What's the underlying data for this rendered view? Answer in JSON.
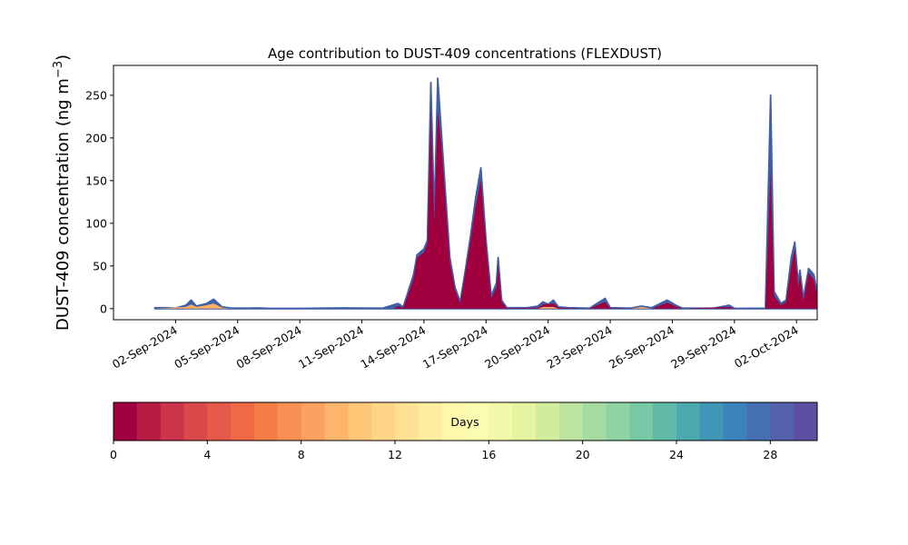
{
  "chart_data": {
    "type": "area",
    "title": "Age contribution to DUST-409 concentrations (FLEXDUST)",
    "ylabel": "DUST-409 concentration (ng m",
    "ylabel_superscript": "−3",
    "ylabel_suffix": ")",
    "x_range": [
      "2024-08-30",
      "2024-10-03"
    ],
    "ylim": [
      -13,
      285
    ],
    "yticks": [
      0,
      50,
      100,
      150,
      200,
      250
    ],
    "xticks": [
      "02-Sep-2024",
      "05-Sep-2024",
      "08-Sep-2024",
      "11-Sep-2024",
      "14-Sep-2024",
      "17-Sep-2024",
      "20-Sep-2024",
      "23-Sep-2024",
      "26-Sep-2024",
      "29-Sep-2024",
      "02-Oct-2024"
    ],
    "xtick_dates": [
      "2024-09-02",
      "2024-09-05",
      "2024-09-08",
      "2024-09-11",
      "2024-09-14",
      "2024-09-17",
      "2024-09-20",
      "2024-09-23",
      "2024-09-26",
      "2024-09-29",
      "2024-10-02"
    ],
    "series": [
      {
        "color": "#3f5fa8",
        "points": [
          [
            "2024-09-01T00:00",
            1
          ],
          [
            "2024-09-01T12:00",
            1
          ],
          [
            "2024-09-02T00:00",
            0.5
          ],
          [
            "2024-09-02T12:00",
            4
          ],
          [
            "2024-09-02T18:00",
            10
          ],
          [
            "2024-09-03T00:00",
            3
          ],
          [
            "2024-09-03T12:00",
            6
          ],
          [
            "2024-09-03T20:00",
            11
          ],
          [
            "2024-09-04T06:00",
            2
          ],
          [
            "2024-09-04T18:00",
            0.5
          ],
          [
            "2024-09-05T12:00",
            0.5
          ],
          [
            "2024-09-06T00:00",
            0.8
          ],
          [
            "2024-09-06T12:00",
            0.3
          ],
          [
            "2024-09-08T00:00",
            0.3
          ],
          [
            "2024-09-10T00:00",
            0.8
          ],
          [
            "2024-09-11T12:00",
            0.5
          ],
          [
            "2024-09-12T00:00",
            0.5
          ],
          [
            "2024-09-12T18:00",
            6
          ],
          [
            "2024-09-13T00:00",
            2
          ],
          [
            "2024-09-13T12:00",
            40
          ],
          [
            "2024-09-13T16:00",
            63
          ],
          [
            "2024-09-14T00:00",
            70
          ],
          [
            "2024-09-14T04:00",
            80
          ],
          [
            "2024-09-14T08:00",
            265
          ],
          [
            "2024-09-14T12:00",
            110
          ],
          [
            "2024-09-14T16:00",
            270
          ],
          [
            "2024-09-14T20:00",
            210
          ],
          [
            "2024-09-15T00:00",
            150
          ],
          [
            "2024-09-15T06:00",
            60
          ],
          [
            "2024-09-15T12:00",
            25
          ],
          [
            "2024-09-15T18:00",
            8
          ],
          [
            "2024-09-16T00:00",
            45
          ],
          [
            "2024-09-16T06:00",
            85
          ],
          [
            "2024-09-16T12:00",
            130
          ],
          [
            "2024-09-16T18:00",
            165
          ],
          [
            "2024-09-17T00:00",
            80
          ],
          [
            "2024-09-17T06:00",
            15
          ],
          [
            "2024-09-17T12:00",
            30
          ],
          [
            "2024-09-17T14:00",
            60
          ],
          [
            "2024-09-17T18:00",
            10
          ],
          [
            "2024-09-18T00:00",
            1
          ],
          [
            "2024-09-19T00:00",
            1
          ],
          [
            "2024-09-19T12:00",
            3
          ],
          [
            "2024-09-19T18:00",
            8
          ],
          [
            "2024-09-20T00:00",
            5
          ],
          [
            "2024-09-20T06:00",
            10
          ],
          [
            "2024-09-20T12:00",
            2
          ],
          [
            "2024-09-21T00:00",
            1
          ],
          [
            "2024-09-22T00:00",
            0.5
          ],
          [
            "2024-09-22T18:00",
            12
          ],
          [
            "2024-09-23T00:00",
            1
          ],
          [
            "2024-09-24T00:00",
            0.5
          ],
          [
            "2024-09-24T12:00",
            3
          ],
          [
            "2024-09-25T00:00",
            1
          ],
          [
            "2024-09-25T18:00",
            10
          ],
          [
            "2024-09-26T06:00",
            3
          ],
          [
            "2024-09-26T12:00",
            0.5
          ],
          [
            "2024-09-28T00:00",
            0.5
          ],
          [
            "2024-09-28T18:00",
            4
          ],
          [
            "2024-09-29T00:00",
            0.3
          ],
          [
            "2024-09-30T12:00",
            0.5
          ],
          [
            "2024-09-30T18:00",
            250
          ],
          [
            "2024-09-30T22:00",
            20
          ],
          [
            "2024-10-01T06:00",
            6
          ],
          [
            "2024-10-01T12:00",
            10
          ],
          [
            "2024-10-01T18:00",
            60
          ],
          [
            "2024-10-01T22:00",
            78
          ],
          [
            "2024-10-02T02:00",
            30
          ],
          [
            "2024-10-02T04:00",
            45
          ],
          [
            "2024-10-02T08:00",
            12
          ],
          [
            "2024-10-02T14:00",
            47
          ],
          [
            "2024-10-02T20:00",
            40
          ],
          [
            "2024-10-03T02:00",
            10
          ],
          [
            "2024-10-03T12:00",
            2
          ],
          [
            "2024-10-03T20:00",
            0
          ]
        ]
      },
      {
        "color": "#a1003f",
        "points": [
          [
            "2024-09-01T00:00",
            0
          ],
          [
            "2024-09-12T12:00",
            0
          ],
          [
            "2024-09-12T18:00",
            3
          ],
          [
            "2024-09-13T00:00",
            1
          ],
          [
            "2024-09-13T12:00",
            35
          ],
          [
            "2024-09-13T16:00",
            60
          ],
          [
            "2024-09-14T00:00",
            66
          ],
          [
            "2024-09-14T04:00",
            76
          ],
          [
            "2024-09-14T08:00",
            235
          ],
          [
            "2024-09-14T12:00",
            100
          ],
          [
            "2024-09-14T16:00",
            232
          ],
          [
            "2024-09-14T20:00",
            195
          ],
          [
            "2024-09-15T00:00",
            140
          ],
          [
            "2024-09-15T06:00",
            55
          ],
          [
            "2024-09-15T12:00",
            22
          ],
          [
            "2024-09-15T18:00",
            6
          ],
          [
            "2024-09-16T00:00",
            42
          ],
          [
            "2024-09-16T06:00",
            80
          ],
          [
            "2024-09-16T12:00",
            120
          ],
          [
            "2024-09-16T18:00",
            152
          ],
          [
            "2024-09-17T00:00",
            75
          ],
          [
            "2024-09-17T06:00",
            12
          ],
          [
            "2024-09-17T12:00",
            25
          ],
          [
            "2024-09-17T14:00",
            52
          ],
          [
            "2024-09-17T18:00",
            8
          ],
          [
            "2024-09-18T00:00",
            0.5
          ],
          [
            "2024-09-19T12:00",
            1
          ],
          [
            "2024-09-19T18:00",
            5
          ],
          [
            "2024-09-20T06:00",
            6
          ],
          [
            "2024-09-20T12:00",
            1
          ],
          [
            "2024-09-22T00:00",
            0
          ],
          [
            "2024-09-22T18:00",
            8
          ],
          [
            "2024-09-23T00:00",
            0.5
          ],
          [
            "2024-09-25T00:00",
            0
          ],
          [
            "2024-09-25T18:00",
            7
          ],
          [
            "2024-09-26T06:00",
            2
          ],
          [
            "2024-09-26T12:00",
            0
          ],
          [
            "2024-09-28T18:00",
            2
          ],
          [
            "2024-09-29T00:00",
            0
          ],
          [
            "2024-09-30T12:00",
            0
          ],
          [
            "2024-09-30T18:00",
            162
          ],
          [
            "2024-09-30T22:00",
            15
          ],
          [
            "2024-10-01T06:00",
            4
          ],
          [
            "2024-10-01T12:00",
            8
          ],
          [
            "2024-10-01T18:00",
            50
          ],
          [
            "2024-10-01T22:00",
            70
          ],
          [
            "2024-10-02T02:00",
            25
          ],
          [
            "2024-10-02T04:00",
            38
          ],
          [
            "2024-10-02T08:00",
            9
          ],
          [
            "2024-10-02T14:00",
            42
          ],
          [
            "2024-10-02T20:00",
            34
          ],
          [
            "2024-10-03T02:00",
            7
          ],
          [
            "2024-10-03T12:00",
            1
          ],
          [
            "2024-10-03T20:00",
            0
          ]
        ]
      },
      {
        "color": "#fdae61",
        "points": [
          [
            "2024-09-01T00:00",
            0
          ],
          [
            "2024-09-02T12:00",
            2
          ],
          [
            "2024-09-02T18:00",
            5
          ],
          [
            "2024-09-03T00:00",
            2
          ],
          [
            "2024-09-03T12:00",
            4
          ],
          [
            "2024-09-03T20:00",
            6
          ],
          [
            "2024-09-04T06:00",
            1
          ],
          [
            "2024-09-04T18:00",
            0
          ],
          [
            "2024-09-19T12:00",
            0
          ],
          [
            "2024-09-19T18:00",
            2
          ],
          [
            "2024-09-20T06:00",
            2
          ],
          [
            "2024-09-20T12:00",
            0
          ],
          [
            "2024-09-24T00:00",
            0
          ],
          [
            "2024-09-24T12:00",
            2
          ],
          [
            "2024-09-25T00:00",
            0
          ],
          [
            "2024-10-03T20:00",
            0
          ]
        ]
      }
    ],
    "colorbar": {
      "label": "Days",
      "range": [
        0,
        30
      ],
      "ticks": [
        0,
        4,
        8,
        12,
        16,
        20,
        24,
        28
      ],
      "colors": [
        "#a1003f",
        "#b91c43",
        "#cc3449",
        "#db4a4a",
        "#e65a49",
        "#ef6a45",
        "#f57d48",
        "#f98f54",
        "#fca160",
        "#fdb56b",
        "#fec778",
        "#fed586",
        "#fee193",
        "#feed9f",
        "#fff8ac",
        "#fbfcb0",
        "#f2f9ab",
        "#e3f3a0",
        "#d2ec9d",
        "#bde49f",
        "#a6dca2",
        "#8fd3a4",
        "#77c8a5",
        "#5fb9a6",
        "#4ca9ad",
        "#3f96b6",
        "#3a83ba",
        "#4470b2",
        "#5462ab",
        "#5e4fa2"
      ]
    }
  }
}
